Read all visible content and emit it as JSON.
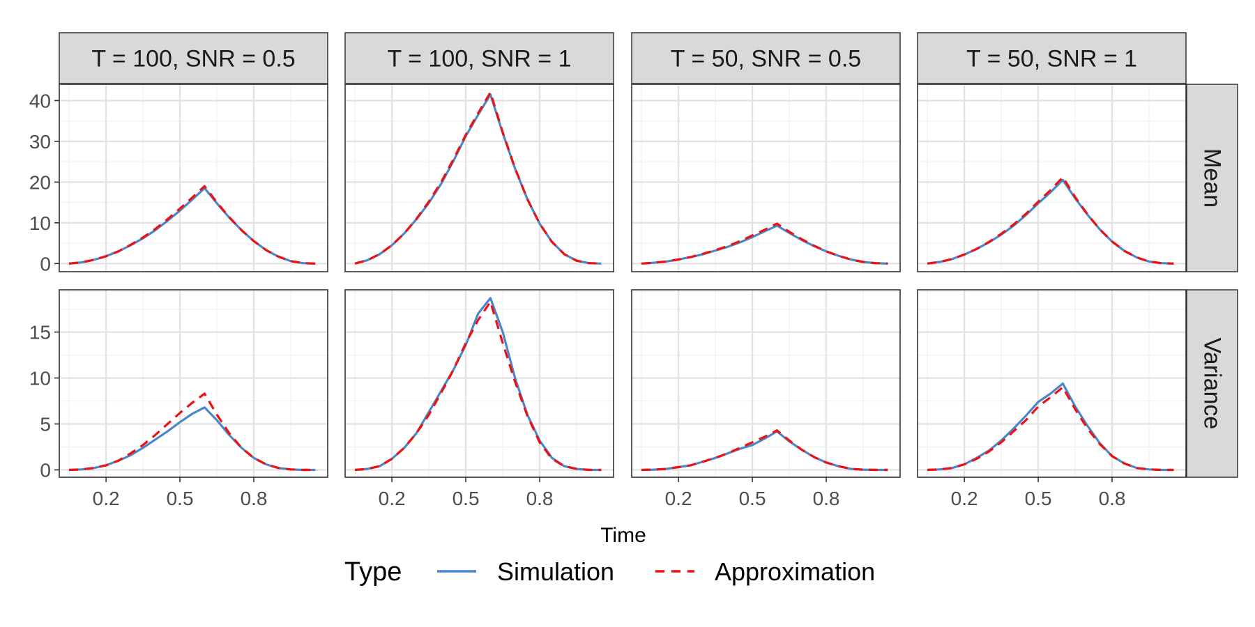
{
  "chart_data": {
    "type": "line",
    "xlabel": "Time",
    "x_ticks": [
      0.2,
      0.5,
      0.8
    ],
    "x_tick_labels": [
      "0.2",
      "0.5",
      "0.8"
    ],
    "xlim": [
      0.01,
      1.1
    ],
    "columns": [
      "T = 100, SNR = 0.5",
      "T = 100, SNR = 1",
      "T = 50, SNR = 0.5",
      "T = 50, SNR = 1"
    ],
    "rows": [
      {
        "label": "Mean",
        "ylim": [
          -2,
          44
        ],
        "y_ticks": [
          0,
          10,
          20,
          30,
          40
        ],
        "y_tick_labels": [
          "0",
          "10",
          "20",
          "30",
          "40"
        ]
      },
      {
        "label": "Variance",
        "ylim": [
          -0.8,
          19.6
        ],
        "y_ticks": [
          0,
          5,
          10,
          15
        ],
        "y_tick_labels": [
          "0",
          "5",
          "10",
          "15"
        ]
      }
    ],
    "legend": {
      "title": "Type",
      "position": "bottom",
      "entries": [
        {
          "label": "Simulation",
          "color": "#4a86c8",
          "dash": "solid"
        },
        {
          "label": "Approximation",
          "color": "#ee1111",
          "dash": "dashed"
        }
      ]
    },
    "x": [
      0.05,
      0.1,
      0.15,
      0.2,
      0.25,
      0.3,
      0.35,
      0.4,
      0.45,
      0.5,
      0.55,
      0.6,
      0.65,
      0.7,
      0.75,
      0.8,
      0.85,
      0.9,
      0.95,
      1.0,
      1.05
    ],
    "panels": [
      {
        "row": "Mean",
        "column": "T = 100, SNR = 0.5",
        "series": [
          {
            "name": "Simulation",
            "values": [
              0,
              0.3,
              0.9,
              1.8,
              3.0,
              4.5,
              6.2,
              8.2,
              10.5,
              13.0,
              15.7,
              18.5,
              14.8,
              11.3,
              8.2,
              5.5,
              3.3,
              1.7,
              0.6,
              0.1,
              0
            ]
          },
          {
            "name": "Approximation",
            "values": [
              0,
              0.3,
              0.9,
              1.8,
              3.0,
              4.6,
              6.4,
              8.5,
              10.9,
              13.5,
              16.2,
              19.0,
              15.0,
              11.4,
              8.2,
              5.5,
              3.3,
              1.7,
              0.6,
              0.1,
              0
            ]
          }
        ]
      },
      {
        "row": "Mean",
        "column": "T = 100, SNR = 1",
        "series": [
          {
            "name": "Simulation",
            "values": [
              0,
              0.8,
              2.3,
              4.5,
              7.4,
              10.9,
              14.9,
              19.6,
              25.2,
              31.3,
              36.5,
              41.5,
              32.0,
              23.3,
              15.8,
              9.8,
              5.3,
              2.3,
              0.7,
              0.1,
              0
            ]
          },
          {
            "name": "Approximation",
            "values": [
              0,
              0.8,
              2.3,
              4.5,
              7.4,
              11.0,
              15.2,
              20.0,
              25.6,
              31.6,
              36.9,
              42.0,
              32.2,
              23.4,
              15.8,
              9.8,
              5.3,
              2.3,
              0.7,
              0.1,
              0
            ]
          }
        ]
      },
      {
        "row": "Mean",
        "column": "T = 50, SNR = 0.5",
        "series": [
          {
            "name": "Simulation",
            "values": [
              0,
              0.2,
              0.5,
              1.0,
              1.6,
              2.3,
              3.2,
              4.1,
              5.2,
              6.5,
              7.9,
              9.3,
              7.5,
              5.8,
              4.3,
              3.0,
              1.9,
              1.0,
              0.4,
              0.1,
              0
            ]
          },
          {
            "name": "Approximation",
            "values": [
              0,
              0.2,
              0.5,
              1.0,
              1.6,
              2.4,
              3.3,
              4.3,
              5.5,
              6.9,
              8.3,
              9.8,
              7.8,
              6.0,
              4.4,
              3.0,
              1.9,
              1.0,
              0.4,
              0.1,
              0
            ]
          }
        ]
      },
      {
        "row": "Mean",
        "column": "T = 50, SNR = 1",
        "series": [
          {
            "name": "Simulation",
            "values": [
              0,
              0.4,
              1.1,
              2.2,
              3.6,
              5.2,
              7.1,
              9.3,
              11.9,
              14.8,
              17.5,
              20.5,
              16.0,
              12.0,
              8.4,
              5.4,
              3.1,
              1.5,
              0.5,
              0.1,
              0
            ]
          },
          {
            "name": "Approximation",
            "values": [
              0,
              0.4,
              1.1,
              2.2,
              3.6,
              5.3,
              7.3,
              9.6,
              12.2,
              15.2,
              18.0,
              21.2,
              16.3,
              12.1,
              8.4,
              5.4,
              3.1,
              1.5,
              0.5,
              0.1,
              0
            ]
          }
        ]
      },
      {
        "row": "Variance",
        "column": "T = 100, SNR = 0.5",
        "series": [
          {
            "name": "Simulation",
            "values": [
              0,
              0.05,
              0.2,
              0.5,
              1.0,
              1.6,
              2.4,
              3.3,
              4.2,
              5.2,
              6.1,
              6.8,
              5.4,
              3.8,
              2.4,
              1.3,
              0.6,
              0.2,
              0.05,
              0,
              0
            ]
          },
          {
            "name": "Approximation",
            "values": [
              0,
              0.05,
              0.2,
              0.5,
              1.0,
              1.8,
              2.7,
              3.8,
              5.0,
              6.2,
              7.3,
              8.3,
              6.0,
              4.0,
              2.4,
              1.3,
              0.6,
              0.2,
              0.05,
              0,
              0
            ]
          }
        ]
      },
      {
        "row": "Variance",
        "column": "T = 100, SNR = 1",
        "series": [
          {
            "name": "Simulation",
            "values": [
              0,
              0.1,
              0.4,
              1.2,
              2.4,
              4.0,
              6.3,
              8.6,
              10.9,
              13.6,
              17.0,
              18.7,
              15.0,
              10.0,
              6.0,
              3.2,
              1.3,
              0.4,
              0.1,
              0,
              0
            ]
          },
          {
            "name": "Approximation",
            "values": [
              0,
              0.1,
              0.4,
              1.2,
              2.4,
              4.0,
              6.0,
              8.4,
              10.9,
              13.8,
              16.3,
              18.3,
              13.8,
              9.6,
              5.9,
              3.0,
              1.2,
              0.4,
              0.1,
              0,
              0
            ]
          }
        ]
      },
      {
        "row": "Variance",
        "column": "T = 50, SNR = 0.5",
        "series": [
          {
            "name": "Simulation",
            "values": [
              0,
              0.03,
              0.1,
              0.3,
              0.5,
              0.9,
              1.3,
              1.8,
              2.3,
              2.7,
              3.4,
              4.2,
              3.1,
              2.2,
              1.4,
              0.8,
              0.4,
              0.1,
              0.03,
              0,
              0
            ]
          },
          {
            "name": "Approximation",
            "values": [
              0,
              0.03,
              0.1,
              0.3,
              0.5,
              0.9,
              1.3,
              1.8,
              2.4,
              3.0,
              3.6,
              4.3,
              3.2,
              2.2,
              1.4,
              0.8,
              0.4,
              0.1,
              0.03,
              0,
              0
            ]
          }
        ]
      },
      {
        "row": "Variance",
        "column": "T = 50, SNR = 1",
        "series": [
          {
            "name": "Simulation",
            "values": [
              0,
              0.05,
              0.2,
              0.6,
              1.3,
              2.1,
              3.2,
              4.5,
              5.9,
              7.4,
              8.3,
              9.4,
              6.9,
              4.8,
              2.9,
              1.5,
              0.7,
              0.2,
              0.05,
              0,
              0
            ]
          },
          {
            "name": "Approximation",
            "values": [
              0,
              0.05,
              0.2,
              0.6,
              1.2,
              2.0,
              3.0,
              4.2,
              5.4,
              6.9,
              7.9,
              9.0,
              6.6,
              4.5,
              2.8,
              1.5,
              0.7,
              0.2,
              0.05,
              0,
              0
            ]
          }
        ]
      }
    ]
  }
}
